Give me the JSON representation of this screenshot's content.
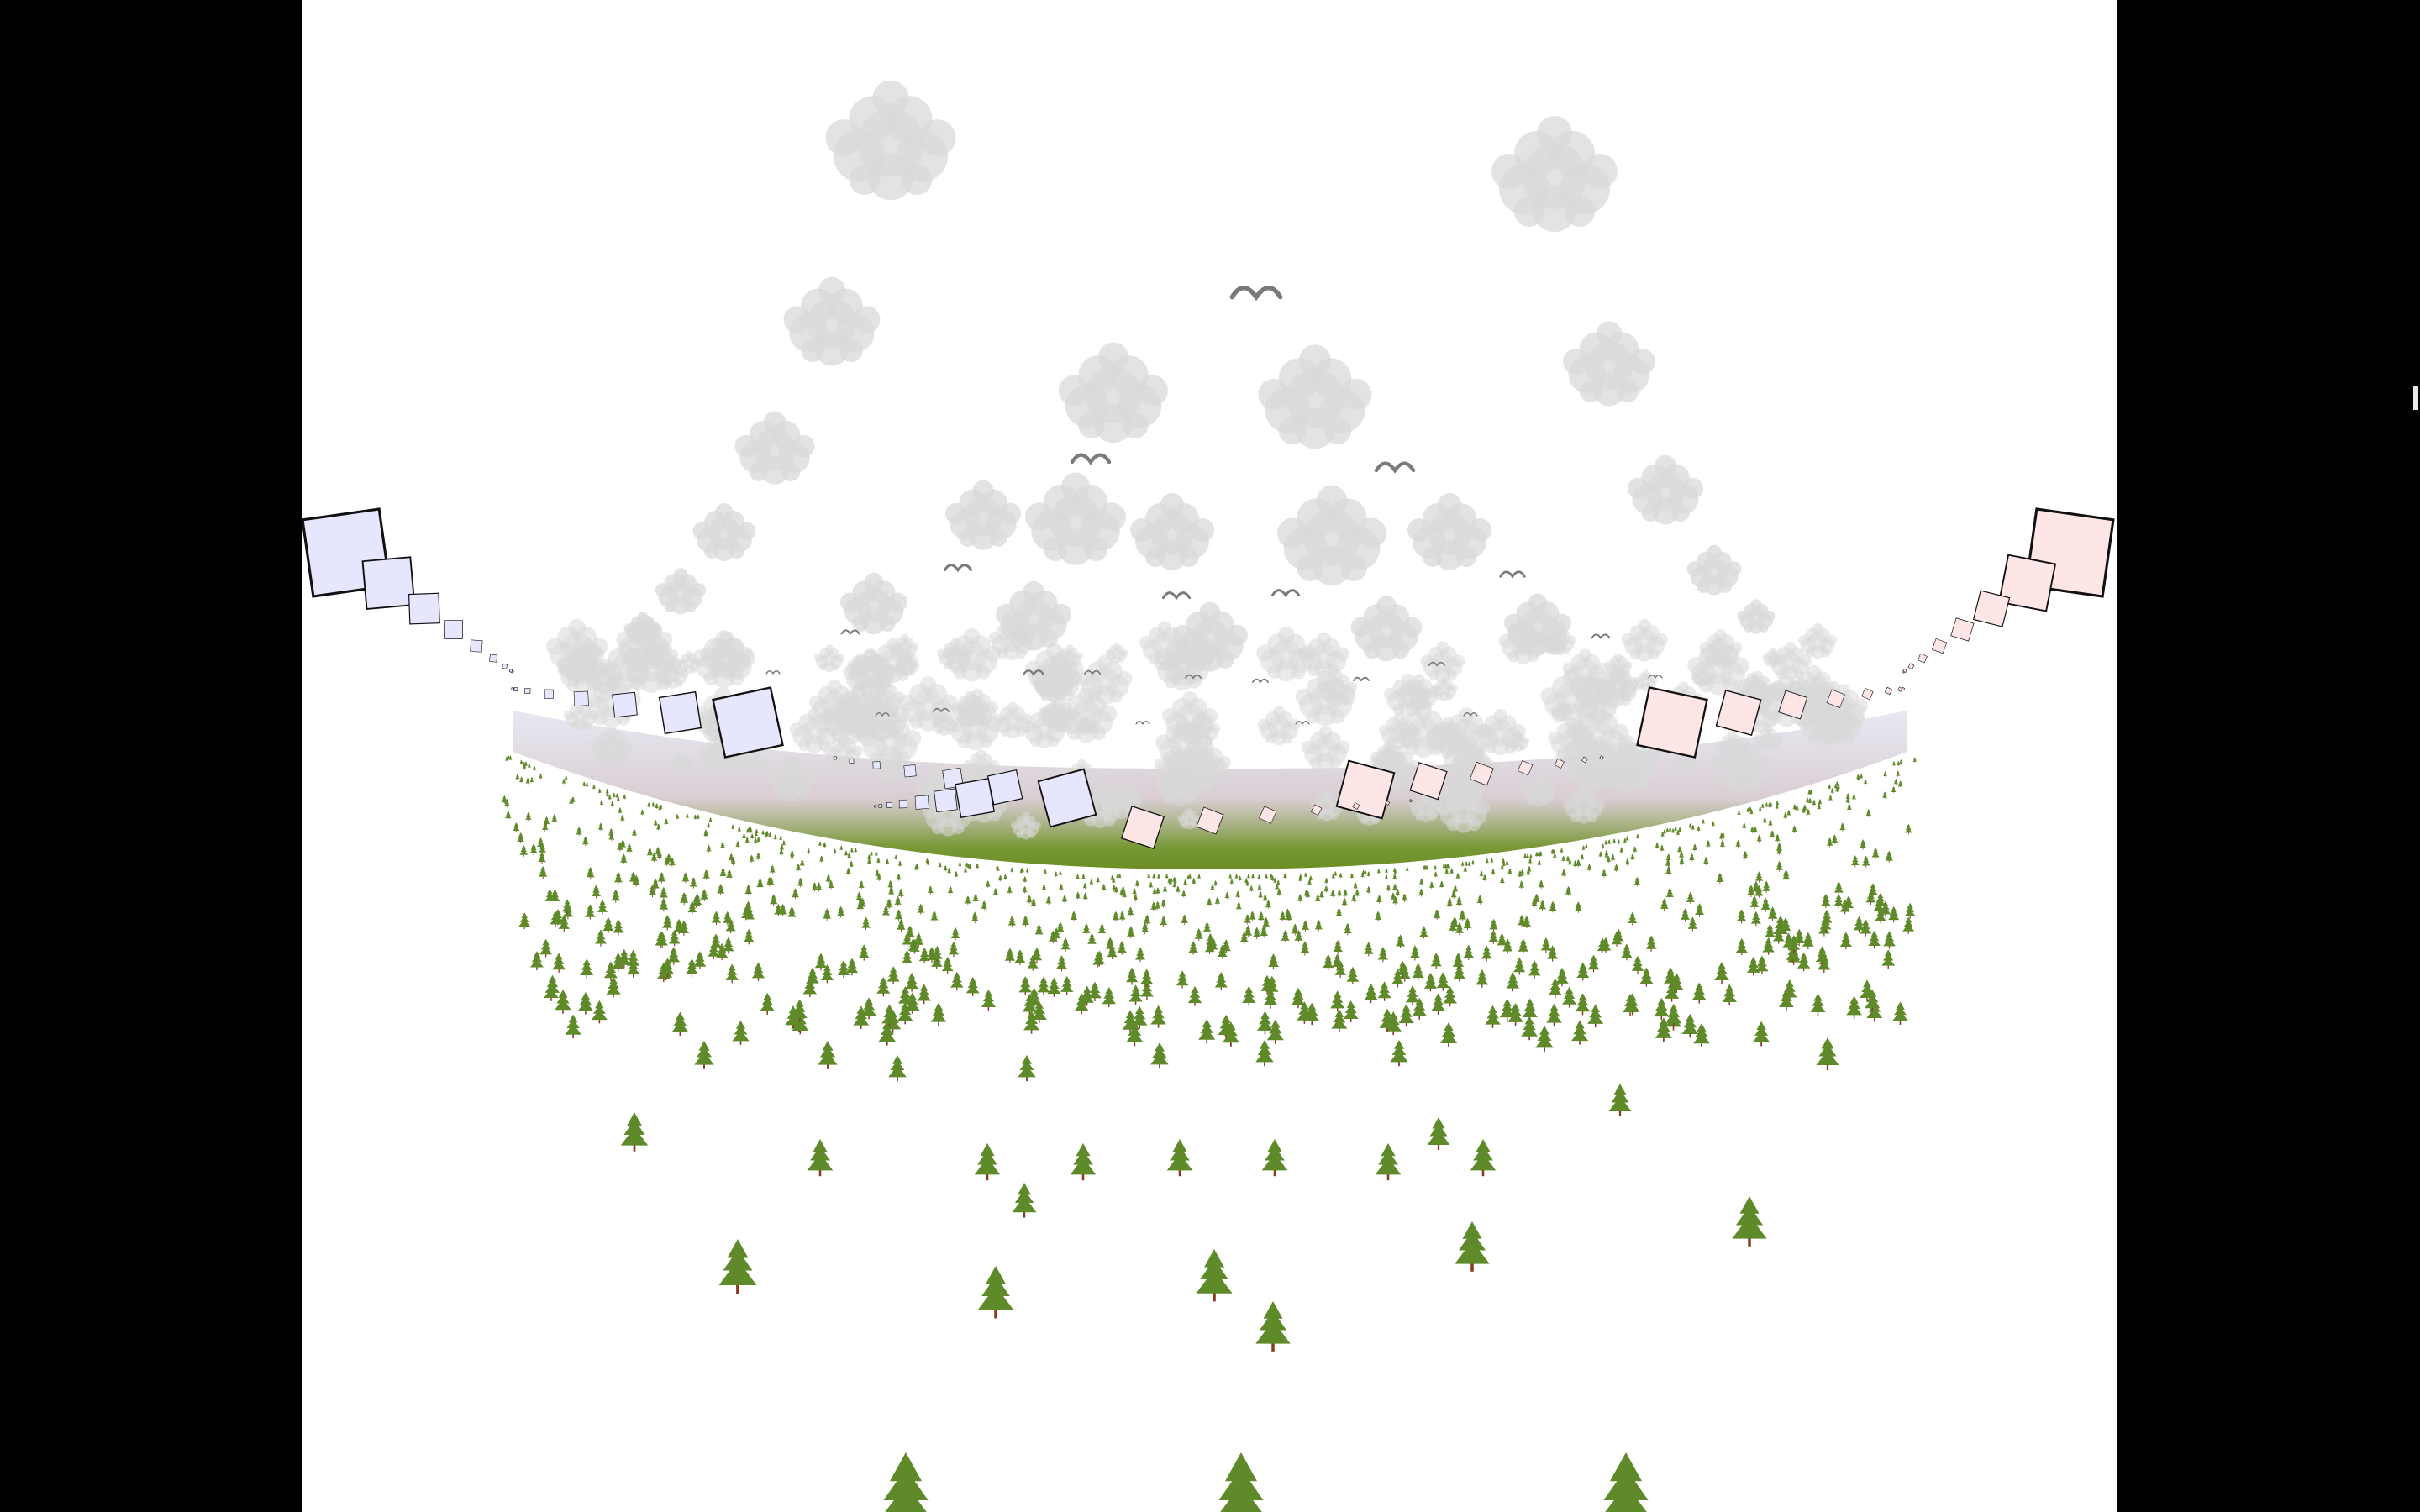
{
  "scene": {
    "description_colors": {
      "background": "#ffffff",
      "letterbox": "#000000",
      "cloud": "#d9d9d9",
      "bird": "#7a7a7a",
      "tree_foliage": "#5f8a2a",
      "tree_trunk": "#8b3a1f",
      "kite_left_fill": "#e6e6ff",
      "kite_right_fill": "#ffe6e6",
      "kite_outline": "#111111",
      "horizon_green": "#6b8e23"
    },
    "elements": {
      "clouds": "cloud-icon",
      "birds": "bird-icon",
      "trees": "pine-tree-icon",
      "kites_left": "square-kite-icon",
      "kites_right": "square-kite-icon"
    }
  }
}
